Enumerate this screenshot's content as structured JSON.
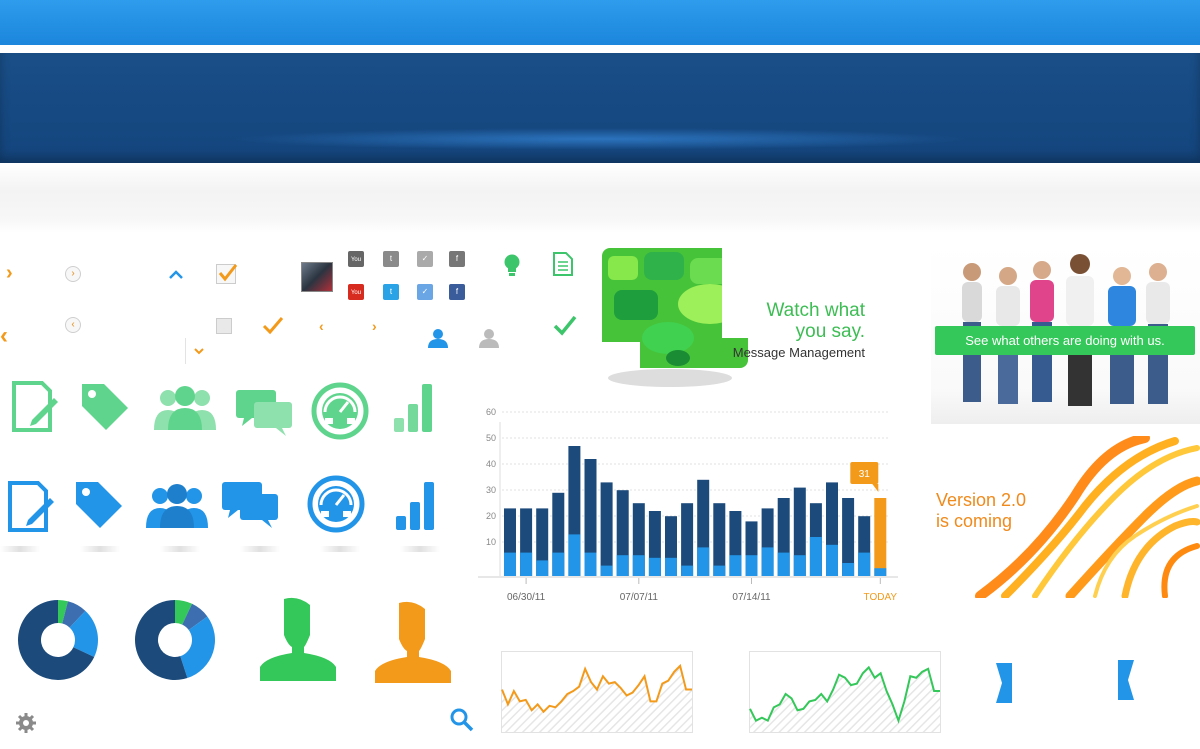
{
  "promo_watch": {
    "line1": "Watch what",
    "line2": "you say.",
    "caption": "Message Management"
  },
  "promo_people": {
    "banner": "See what others are doing with us."
  },
  "promo_version": {
    "line1": "Version 2.0",
    "line2": "is coming"
  },
  "social": {
    "youtube": "You Tube"
  },
  "colors": {
    "blue": "#2395e8",
    "dark_blue": "#1b4a7b",
    "green": "#34c759",
    "orange": "#f39a1b"
  },
  "chart_data": {
    "type": "bar",
    "yticks": [
      "10",
      "20",
      "30",
      "40",
      "50",
      "60"
    ],
    "ylim": [
      0,
      60
    ],
    "xtick_labels": [
      "06/30/11",
      "07/07/11",
      "07/14/11",
      "TODAY"
    ],
    "callout": "31",
    "series": [
      {
        "values": [
          26,
          26,
          26,
          32,
          50,
          45,
          36,
          33,
          28,
          25,
          23,
          28,
          37,
          28,
          25,
          21,
          26,
          30,
          34,
          28,
          36,
          30,
          23,
          30
        ]
      },
      {
        "values": [
          9,
          9,
          6,
          9,
          16,
          9,
          4,
          8,
          8,
          7,
          7,
          4,
          11,
          4,
          8,
          8,
          11,
          9,
          8,
          15,
          12,
          5,
          9,
          3
        ]
      }
    ]
  },
  "line_orange": {
    "values": [
      28,
      18,
      27,
      20,
      21,
      14,
      18,
      13,
      17,
      16,
      20,
      25,
      27,
      30,
      42,
      33,
      28,
      37,
      32,
      33,
      29,
      24,
      26,
      31,
      37,
      20,
      20,
      32,
      34,
      40,
      44,
      28,
      28
    ]
  },
  "line_green": {
    "values": [
      15,
      7,
      9,
      7,
      16,
      18,
      25,
      22,
      14,
      15,
      20,
      21,
      25,
      20,
      28,
      38,
      36,
      31,
      32,
      39,
      43,
      36,
      39,
      27,
      18,
      7,
      20,
      37,
      36,
      40,
      42,
      27,
      27
    ]
  },
  "donut1": {
    "values": [
      68,
      20,
      8,
      4
    ]
  },
  "donut2": {
    "values": [
      55,
      30,
      8,
      7
    ]
  }
}
